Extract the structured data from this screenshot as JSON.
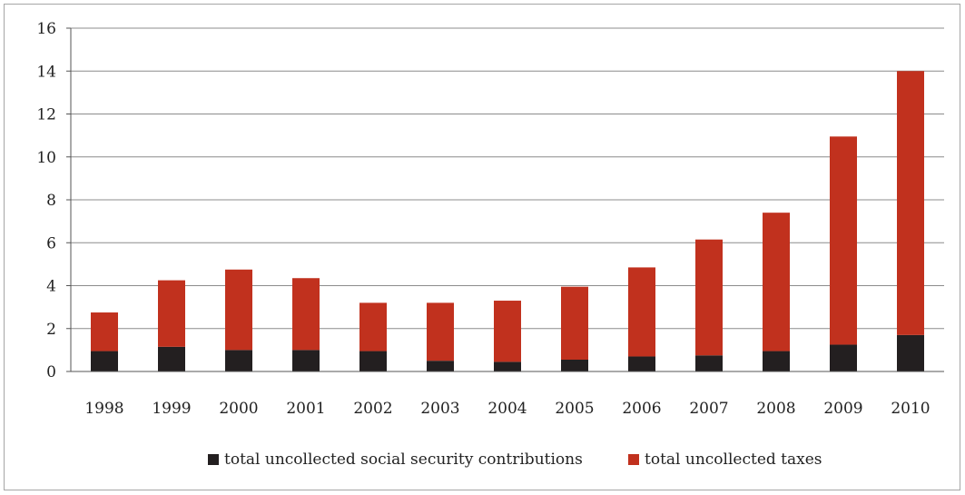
{
  "chart_data": {
    "type": "bar",
    "stacked": true,
    "categories": [
      "1998",
      "1999",
      "2000",
      "2001",
      "2002",
      "2003",
      "2004",
      "2005",
      "2006",
      "2007",
      "2008",
      "2009",
      "2010"
    ],
    "series": [
      {
        "name": "total uncollected social security contributions",
        "color": "#231f20",
        "values": [
          0.95,
          1.15,
          1.0,
          1.0,
          0.95,
          0.5,
          0.45,
          0.55,
          0.7,
          0.75,
          0.95,
          1.25,
          1.7
        ]
      },
      {
        "name": "total uncollected taxes",
        "color": "#c1311e",
        "values": [
          1.8,
          3.1,
          3.75,
          3.35,
          2.25,
          2.7,
          2.85,
          3.4,
          4.15,
          5.4,
          6.45,
          9.7,
          12.3
        ]
      }
    ],
    "title": "",
    "xlabel": "",
    "ylabel": "",
    "ylim": [
      0,
      16
    ],
    "yticks": [
      0,
      2,
      4,
      6,
      8,
      10,
      12,
      14,
      16
    ],
    "ytick_labels": [
      "0",
      "2",
      "4",
      "6",
      "8",
      "10",
      "12",
      "14",
      "16"
    ],
    "grid": true,
    "legend_position": "bottom-center"
  }
}
